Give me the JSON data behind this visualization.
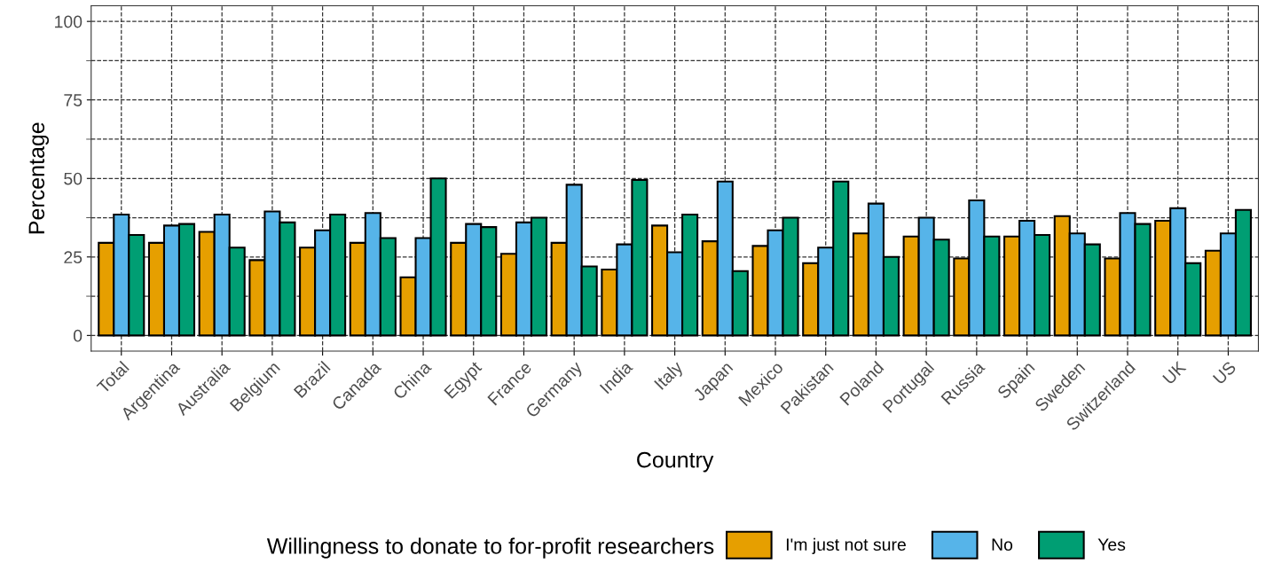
{
  "chart_data": {
    "type": "bar",
    "xlabel": "Country",
    "ylabel": "Percentage",
    "legend_title": "Willingness to donate to for-profit researchers",
    "categories": [
      "Total",
      "Argentina",
      "Australia",
      "Belgium",
      "Brazil",
      "Canada",
      "China",
      "Egypt",
      "France",
      "Germany",
      "India",
      "Italy",
      "Japan",
      "Mexico",
      "Pakistan",
      "Poland",
      "Portugal",
      "Russia",
      "Spain",
      "Sweden",
      "Switzerland",
      "UK",
      "US"
    ],
    "series": [
      {
        "name": "I'm just not sure",
        "color": "#e69f00",
        "values": [
          29.5,
          29.5,
          33,
          24,
          28,
          29.5,
          18.5,
          29.5,
          26,
          29.5,
          21,
          35,
          30,
          28.5,
          23,
          32.5,
          31.5,
          24.5,
          31.5,
          38,
          24.5,
          36.5,
          27
        ]
      },
      {
        "name": "No",
        "color": "#56b4e9",
        "values": [
          38.5,
          35,
          38.5,
          39.5,
          33.5,
          39,
          31,
          35.5,
          36,
          48,
          29,
          26.5,
          49,
          33.5,
          28,
          42,
          37.5,
          43,
          36.5,
          32.5,
          39,
          40.5,
          32.5
        ]
      },
      {
        "name": "Yes",
        "color": "#009e73",
        "values": [
          32,
          35.5,
          28,
          36,
          38.5,
          31,
          50,
          34.5,
          37.5,
          22,
          49.5,
          38.5,
          20.5,
          37.5,
          49,
          25,
          30.5,
          31.5,
          32,
          29,
          35.5,
          23,
          40
        ]
      }
    ],
    "ylim": [
      -5,
      105
    ],
    "yticks": [
      0,
      25,
      50,
      75,
      100
    ],
    "grid": true,
    "legend": "bottom"
  }
}
